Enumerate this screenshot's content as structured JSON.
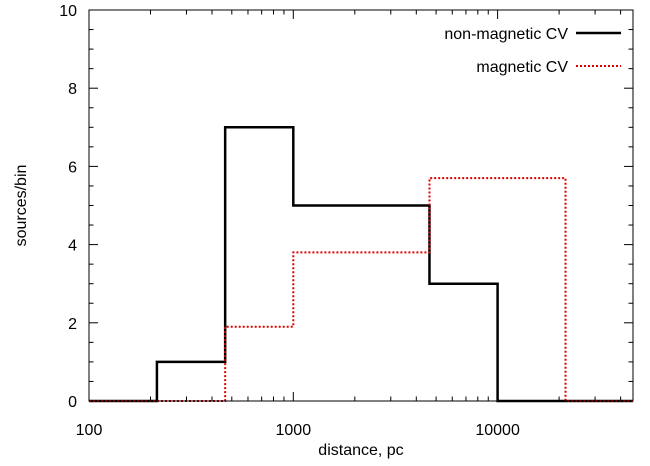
{
  "chart_data": {
    "type": "line",
    "title": "",
    "xlabel": "distance, pc",
    "ylabel": "sources/bin",
    "xscale": "log",
    "xlim": [
      100,
      46000
    ],
    "ylim": [
      0,
      10
    ],
    "grid": false,
    "legend_position": "top-right",
    "x_ticks": [
      {
        "value": 100,
        "label": "100"
      },
      {
        "value": 1000,
        "label": "1000"
      },
      {
        "value": 10000,
        "label": "10000"
      }
    ],
    "y_ticks": [
      {
        "value": 0,
        "label": "0"
      },
      {
        "value": 2,
        "label": "2"
      },
      {
        "value": 4,
        "label": "4"
      },
      {
        "value": 6,
        "label": "6"
      },
      {
        "value": 8,
        "label": "8"
      },
      {
        "value": 10,
        "label": "10"
      }
    ],
    "series": [
      {
        "name": "non-magnetic CV",
        "color": "#000000",
        "style": "solid",
        "bins": [
          {
            "x0": 100,
            "x1": 215,
            "y": 0
          },
          {
            "x0": 215,
            "x1": 464,
            "y": 1
          },
          {
            "x0": 464,
            "x1": 1000,
            "y": 7
          },
          {
            "x0": 1000,
            "x1": 4640,
            "y": 5
          },
          {
            "x0": 4640,
            "x1": 10000,
            "y": 3
          },
          {
            "x0": 10000,
            "x1": 46000,
            "y": 0
          }
        ]
      },
      {
        "name": "magnetic CV",
        "color": "#dd0000",
        "style": "dotted",
        "bins": [
          {
            "x0": 100,
            "x1": 464,
            "y": 0
          },
          {
            "x0": 464,
            "x1": 1000,
            "y": 1.9
          },
          {
            "x0": 1000,
            "x1": 4640,
            "y": 3.8
          },
          {
            "x0": 4640,
            "x1": 21500,
            "y": 5.7
          },
          {
            "x0": 21500,
            "x1": 46000,
            "y": 0
          }
        ]
      }
    ]
  }
}
